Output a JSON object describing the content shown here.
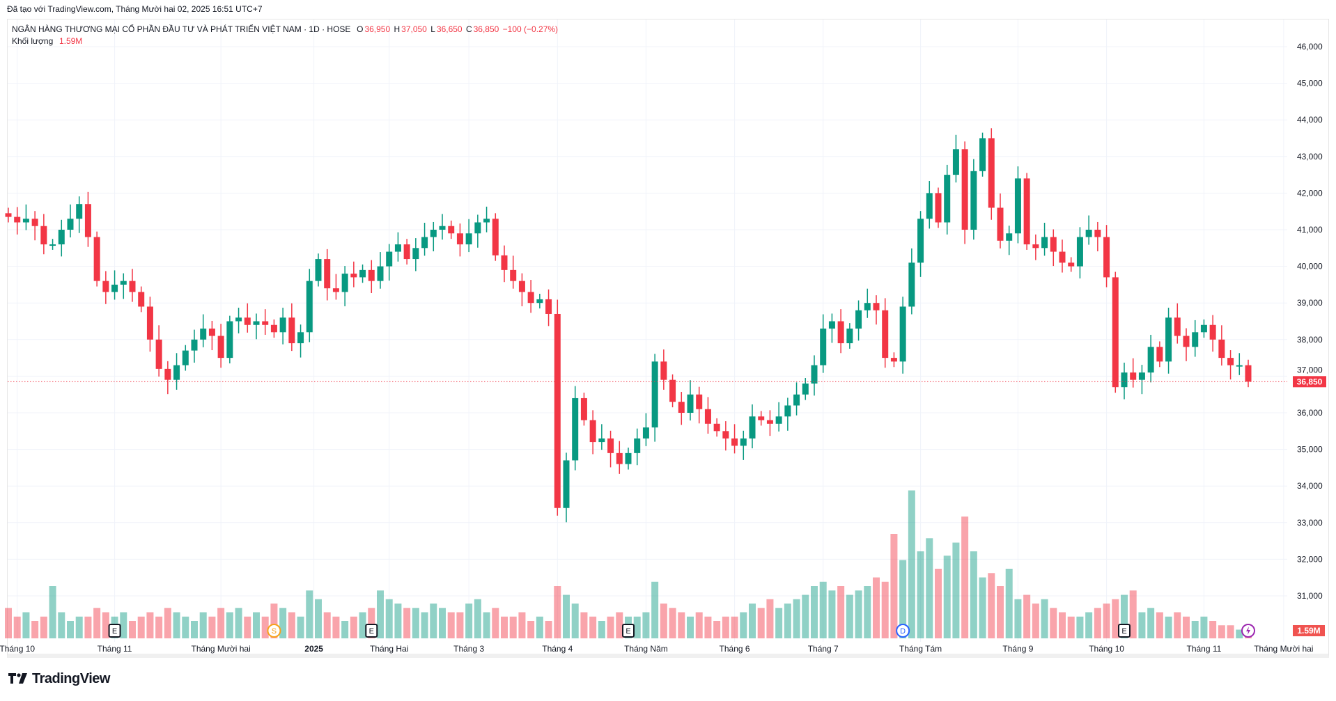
{
  "created_text": "Đã tạo với TradingView.com, Tháng Mười hai 02, 2025 16:51 UTC+7",
  "legend": {
    "symbol": "NGÂN HÀNG THƯƠNG MẠI CỔ PHẦN ĐẦU TƯ VÀ PHÁT TRIỂN VIỆT NAM · 1D · HOSE",
    "o_label": "O",
    "o": "36,950",
    "h_label": "H",
    "h": "37,050",
    "l_label": "L",
    "l": "36,650",
    "c_label": "C",
    "c": "36,850",
    "change": "−100 (−0.27%)",
    "volume_label": "Khối lượng",
    "volume": "1.59M"
  },
  "brand": "TradingView",
  "colors": {
    "up": "#089981",
    "down": "#F23645",
    "grid": "#f0f3fa"
  },
  "chart_data": {
    "type": "candlestick",
    "title": "NGÂN HÀNG THƯƠNG MẠI CỔ PHẦN ĐẦU TƯ VÀ PHÁT TRIỂN VIỆT NAM · 1D · HOSE",
    "ylim": [
      30500,
      46500
    ],
    "y_ticks": [
      "46,000",
      "45,000",
      "44,000",
      "43,000",
      "42,000",
      "41,000",
      "40,000",
      "39,000",
      "38,000",
      "37,000",
      "36,000",
      "35,000",
      "34,000",
      "33,000",
      "32,000",
      "31,000"
    ],
    "y_tick_values": [
      46000,
      45000,
      44000,
      43000,
      42000,
      41000,
      40000,
      39000,
      38000,
      37000,
      36000,
      35000,
      34000,
      33000,
      32000,
      31000
    ],
    "x_ticks": [
      "Tháng 10",
      "Tháng 11",
      "Tháng Mười hai",
      "2025",
      "Tháng Hai",
      "Tháng 3",
      "Tháng 4",
      "Tháng Năm",
      "Tháng 6",
      "Tháng 7",
      "Tháng Tám",
      "Tháng 9",
      "Tháng 10",
      "Tháng 11",
      "Tháng Mười hai"
    ],
    "x_tick_index": [
      2,
      24,
      48,
      69,
      86,
      104,
      124,
      144,
      164,
      184,
      206,
      228,
      248,
      270,
      288
    ],
    "last_price_label": "36,850",
    "last_volume_label": "1.59M",
    "events": [
      {
        "label": "E",
        "index": 24,
        "kind": "earnings"
      },
      {
        "label": "S",
        "index": 60,
        "kind": "split"
      },
      {
        "label": "E",
        "index": 82,
        "kind": "earnings"
      },
      {
        "label": "E",
        "index": 140,
        "kind": "earnings"
      },
      {
        "label": "D",
        "index": 202,
        "kind": "dividend"
      },
      {
        "label": "E",
        "index": 252,
        "kind": "earnings"
      },
      {
        "label": "",
        "index": 280,
        "kind": "news"
      }
    ],
    "close": [
      41350,
      41200,
      41300,
      41100,
      40600,
      40600,
      41000,
      41300,
      41700,
      40800,
      39600,
      39300,
      39500,
      39600,
      39300,
      38900,
      38000,
      37200,
      36900,
      37300,
      37700,
      38000,
      38300,
      38100,
      37500,
      38500,
      38600,
      38400,
      38500,
      38400,
      38200,
      38600,
      37900,
      38200,
      39600,
      40200,
      39400,
      39300,
      39800,
      39700,
      39900,
      39600,
      40000,
      40400,
      40600,
      40200,
      40500,
      40800,
      41000,
      41100,
      40900,
      40600,
      40900,
      41200,
      41300,
      40300,
      39900,
      39600,
      39300,
      39000,
      39100,
      38700,
      33400,
      34700,
      36400,
      35800,
      35200,
      35300,
      34900,
      34600,
      34900,
      35300,
      35600,
      37400,
      36900,
      36300,
      36000,
      36500,
      36100,
      35700,
      35500,
      35300,
      35100,
      35300,
      35900,
      35800,
      35700,
      35900,
      36200,
      36500,
      36800,
      37300,
      38300,
      38500,
      37900,
      38300,
      38800,
      39000,
      38800,
      37500,
      37400,
      38900,
      40100,
      41300,
      42000,
      41200,
      42500,
      43200,
      41000,
      42600,
      43500,
      41600,
      40700,
      40900,
      42400,
      40600,
      40500,
      40800,
      40400,
      40100,
      40000,
      40800,
      41000,
      40800,
      39700,
      36700,
      37100,
      36900,
      37100,
      37800,
      37400,
      38600,
      38100,
      37800,
      38200,
      38400,
      38000,
      37500,
      37300,
      37300,
      36850
    ],
    "volume_m": [
      7,
      5,
      6,
      4,
      5,
      12,
      6,
      4,
      5,
      5,
      7,
      6,
      5,
      6,
      4,
      5,
      6,
      5,
      7,
      6,
      5,
      4,
      6,
      5,
      7,
      6,
      7,
      5,
      6,
      5,
      8,
      7,
      6,
      5,
      11,
      9,
      6,
      5,
      4,
      5,
      6,
      7,
      11,
      9,
      8,
      7,
      7,
      6,
      8,
      7,
      6,
      6,
      8,
      9,
      6,
      7,
      5,
      5,
      6,
      4,
      5,
      4,
      12,
      10,
      8,
      6,
      5,
      4,
      5,
      6,
      5,
      5,
      6,
      13,
      8,
      7,
      6,
      5,
      6,
      5,
      4,
      5,
      5,
      6,
      8,
      7,
      9,
      7,
      8,
      9,
      10,
      12,
      13,
      11,
      12,
      10,
      11,
      12,
      14,
      13,
      24,
      18,
      34,
      20,
      23,
      16,
      19,
      22,
      28,
      20,
      14,
      15,
      12,
      16,
      9,
      10,
      8,
      9,
      7,
      6,
      5,
      5,
      6,
      7,
      8,
      9,
      10,
      11,
      6,
      7,
      6,
      5,
      6,
      5,
      4,
      5,
      4,
      3,
      3,
      2,
      1.59
    ],
    "volume_ylim_m": [
      0,
      36
    ]
  }
}
